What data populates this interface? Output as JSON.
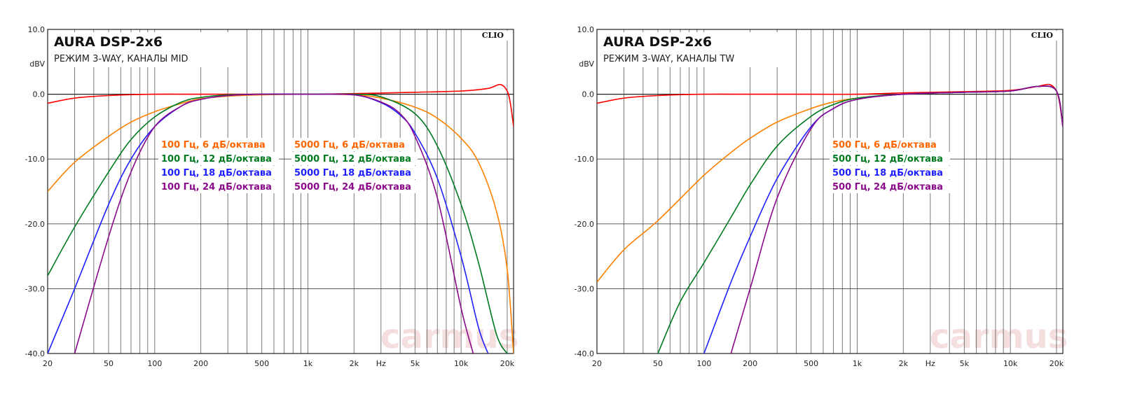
{
  "chart_data": [
    {
      "type": "line",
      "title": "AURA DSP-2x6",
      "subtitle": "РЕЖИМ 3-WAY, КАНАЛЫ MID",
      "ylabel": "dBV",
      "xlabel": "Hz",
      "brand": "CLIO",
      "watermark": "carmus",
      "x_scale": "log",
      "xlim": [
        20,
        22000
      ],
      "ylim": [
        -40,
        10
      ],
      "grid": true,
      "y_ticks": [
        "10.0",
        "0.0",
        "-10.0",
        "-20.0",
        "-30.0",
        "-40.0"
      ],
      "x_ticks": [
        "20",
        "50",
        "100",
        "200",
        "500",
        "1k",
        "2k",
        "Hz",
        "5k",
        "10k",
        "20k"
      ],
      "legend": [
        {
          "text": "100 Гц, 6 дБ/октава",
          "color": "#ff6600"
        },
        {
          "text": "100 Гц, 12 дБ/октава",
          "color": "#007a1f"
        },
        {
          "text": "100 Гц, 18 дБ/октава",
          "color": "#1f1fff"
        },
        {
          "text": "100 Гц, 24 дБ/октава",
          "color": "#8b0a8b"
        },
        {
          "text": "5000 Гц, 6 дБ/октава",
          "color": "#ff6600"
        },
        {
          "text": "5000 Гц, 12 дБ/октава",
          "color": "#007a1f"
        },
        {
          "text": "5000 Гц, 18 дБ/октава",
          "color": "#1f1fff"
        },
        {
          "text": "5000 Гц, 24 дБ/октава",
          "color": "#8b0a8b"
        }
      ],
      "series": [
        {
          "color": "#ff0000",
          "x": [
            20,
            30,
            50,
            100,
            200,
            500,
            1000,
            2000,
            5000,
            10000,
            15000,
            18000,
            20000,
            21000,
            22000
          ],
          "y": [
            -1.4,
            -0.6,
            -0.2,
            0,
            0,
            0,
            0,
            0.1,
            0.3,
            0.5,
            0.9,
            1.5,
            0.5,
            -1.5,
            -5
          ]
        },
        {
          "color": "#ff8000",
          "x": [
            20,
            30,
            50,
            70,
            100,
            150,
            200,
            300,
            500,
            1000,
            2000,
            3000,
            5000,
            7000,
            10000,
            13000,
            17000,
            20000,
            22000
          ],
          "y": [
            -15,
            -10.5,
            -6.5,
            -4.3,
            -2.7,
            -1.4,
            -0.7,
            -0.3,
            -0.1,
            0,
            -0.1,
            -0.6,
            -2,
            -3.7,
            -6.8,
            -10.5,
            -18,
            -27,
            -40
          ]
        },
        {
          "color": "#007a1f",
          "x": [
            20,
            30,
            50,
            70,
            100,
            150,
            200,
            300,
            500,
            1000,
            2000,
            3000,
            5000,
            7000,
            10000,
            13000,
            17000,
            20000
          ],
          "y": [
            -28,
            -20.5,
            -12,
            -7,
            -3.5,
            -1.2,
            -0.5,
            -0.1,
            0,
            0,
            0,
            -0.4,
            -3,
            -8,
            -17,
            -26,
            -37,
            -40
          ]
        },
        {
          "color": "#1f1fff",
          "x": [
            20,
            30,
            50,
            70,
            100,
            150,
            200,
            300,
            500,
            1000,
            2000,
            3000,
            4000,
            5000,
            7000,
            10000,
            13000,
            15000
          ],
          "y": [
            -40,
            -30,
            -17,
            -10,
            -5,
            -1.8,
            -0.8,
            -0.2,
            0,
            0,
            -0.1,
            -1.3,
            -3.2,
            -6,
            -13,
            -25,
            -36,
            -40
          ]
        },
        {
          "color": "#8b0a8b",
          "x": [
            30,
            50,
            70,
            100,
            150,
            200,
            300,
            500,
            1000,
            2000,
            3000,
            4000,
            5000,
            7000,
            10000,
            12000
          ],
          "y": [
            -40,
            -22,
            -12,
            -5,
            -1.8,
            -0.8,
            -0.2,
            0,
            0,
            -0.1,
            -1.2,
            -3,
            -6.5,
            -16,
            -33,
            -40
          ]
        }
      ]
    },
    {
      "type": "line",
      "title": "AURA DSP-2x6",
      "subtitle": "РЕЖИМ 3-WAY, КАНАЛЫ TW",
      "ylabel": "dBV",
      "xlabel": "Hz",
      "brand": "CLIO",
      "watermark": "carmus",
      "x_scale": "log",
      "xlim": [
        20,
        22000
      ],
      "ylim": [
        -40,
        10
      ],
      "grid": true,
      "y_ticks": [
        "10.0",
        "0.0",
        "-10.0",
        "-20.0",
        "-30.0",
        "-40.0"
      ],
      "x_ticks": [
        "20",
        "50",
        "100",
        "200",
        "500",
        "1k",
        "2k",
        "Hz",
        "5k",
        "10k",
        "20k"
      ],
      "legend": [
        {
          "text": "500 Гц, 6 дБ/октава",
          "color": "#ff6600"
        },
        {
          "text": "500 Гц, 12 дБ/октава",
          "color": "#007a1f"
        },
        {
          "text": "500 Гц, 18 дБ/октава",
          "color": "#1f1fff"
        },
        {
          "text": "500 Гц, 24 дБ/октава",
          "color": "#8b0a8b"
        }
      ],
      "series": [
        {
          "color": "#ff0000",
          "x": [
            20,
            30,
            50,
            100,
            200,
            500,
            1000,
            2000,
            5000,
            10000,
            15000,
            18000,
            20000,
            21000,
            22000
          ],
          "y": [
            -1.4,
            -0.6,
            -0.2,
            0,
            0,
            0,
            0,
            0.2,
            0.4,
            0.6,
            1.2,
            1.5,
            0.5,
            -1.5,
            -5
          ]
        },
        {
          "color": "#ff8000",
          "x": [
            20,
            30,
            50,
            100,
            150,
            200,
            300,
            500,
            700,
            1000,
            2000,
            5000,
            10000,
            15000,
            20000,
            22000
          ],
          "y": [
            -29,
            -24,
            -19.5,
            -12.5,
            -9,
            -6.8,
            -4.3,
            -2.2,
            -1.2,
            -0.6,
            0,
            0.3,
            0.5,
            1.2,
            0.5,
            -5
          ]
        },
        {
          "color": "#007a1f",
          "x": [
            50,
            70,
            100,
            150,
            200,
            300,
            500,
            700,
            1000,
            2000,
            5000,
            10000,
            15000,
            20000,
            22000
          ],
          "y": [
            -40,
            -32,
            -26,
            -19,
            -14,
            -8,
            -3.4,
            -1.6,
            -0.6,
            0,
            0.3,
            0.5,
            1.2,
            0.5,
            -5
          ]
        },
        {
          "color": "#1f1fff",
          "x": [
            100,
            150,
            200,
            300,
            500,
            700,
            1000,
            2000,
            5000,
            10000,
            15000,
            20000,
            22000
          ],
          "y": [
            -40,
            -29,
            -22,
            -13,
            -5,
            -2.2,
            -0.8,
            0,
            0.3,
            0.5,
            1.2,
            0.5,
            -5
          ]
        },
        {
          "color": "#8b0a8b",
          "x": [
            150,
            200,
            300,
            500,
            700,
            1000,
            2000,
            5000,
            10000,
            15000,
            20000,
            22000
          ],
          "y": [
            -40,
            -30,
            -16,
            -5.3,
            -2.2,
            -0.8,
            0,
            0.3,
            0.5,
            1.2,
            0.5,
            -5
          ]
        }
      ]
    }
  ]
}
